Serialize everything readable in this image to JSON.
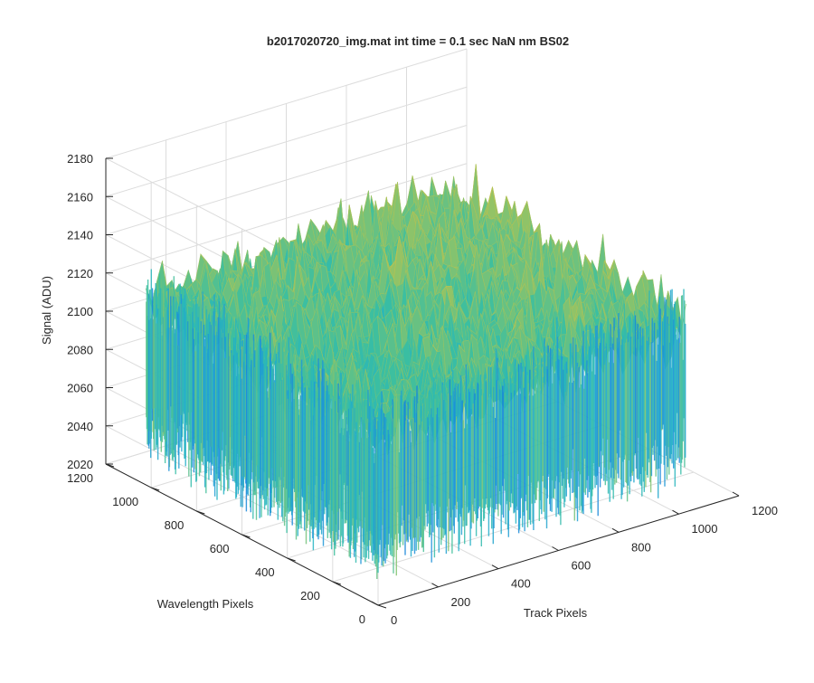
{
  "chart_data": {
    "type": "surface",
    "title": "b2017020720_img.mat int time = 0.1 sec  NaN nm BS02",
    "zlabel": "Signal (ADU)",
    "ylabel": "Wavelength Pixels",
    "xlabel": "Track Pixels",
    "zlim": [
      2020,
      2180
    ],
    "ylim": [
      0,
      1200
    ],
    "xlim": [
      0,
      1200
    ],
    "z_ticks": [
      "2020",
      "2040",
      "2060",
      "2080",
      "2100",
      "2120",
      "2140",
      "2160",
      "2180"
    ],
    "y_ticks": [
      "0",
      "200",
      "400",
      "600",
      "800",
      "1000",
      "1200"
    ],
    "x_ticks": [
      "0",
      "200",
      "400",
      "600",
      "800",
      "1000",
      "1200"
    ],
    "grid": true,
    "colormap": [
      "#0d6ddb",
      "#1f95d8",
      "#23b3c4",
      "#3cbfa0",
      "#8cc36a",
      "#c6c14a",
      "#e8bd3a"
    ],
    "surface_summary": {
      "track_range": [
        0,
        1024
      ],
      "wavelength_range": [
        0,
        1024
      ],
      "typical_signal": 2110,
      "min_signal_approx": 2030,
      "max_signal_approx": 2172
    }
  }
}
